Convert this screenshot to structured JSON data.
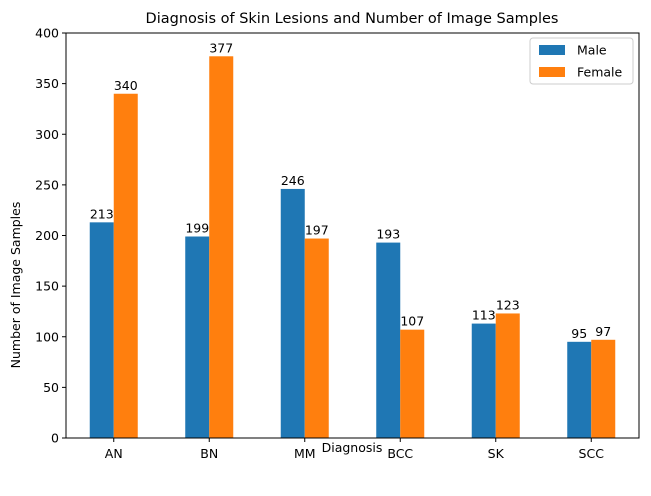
{
  "chart_data": {
    "type": "bar",
    "title": "Diagnosis of Skin Lesions and Number of Image Samples",
    "xlabel": "Diagnosis",
    "ylabel": "Number of Image Samples",
    "categories": [
      "AN",
      "BN",
      "MM",
      "BCC",
      "SK",
      "SCC"
    ],
    "series": [
      {
        "name": "Male",
        "values": [
          213,
          199,
          246,
          193,
          113,
          95
        ],
        "color": "#1f77b4"
      },
      {
        "name": "Female",
        "values": [
          340,
          377,
          197,
          107,
          123,
          97
        ],
        "color": "#ff7f0e"
      }
    ],
    "ylim": [
      0,
      400
    ],
    "yticks": [
      0,
      50,
      100,
      150,
      200,
      250,
      300,
      350,
      400
    ],
    "grid": false,
    "legend_position": "top-right",
    "data_labels": true
  }
}
